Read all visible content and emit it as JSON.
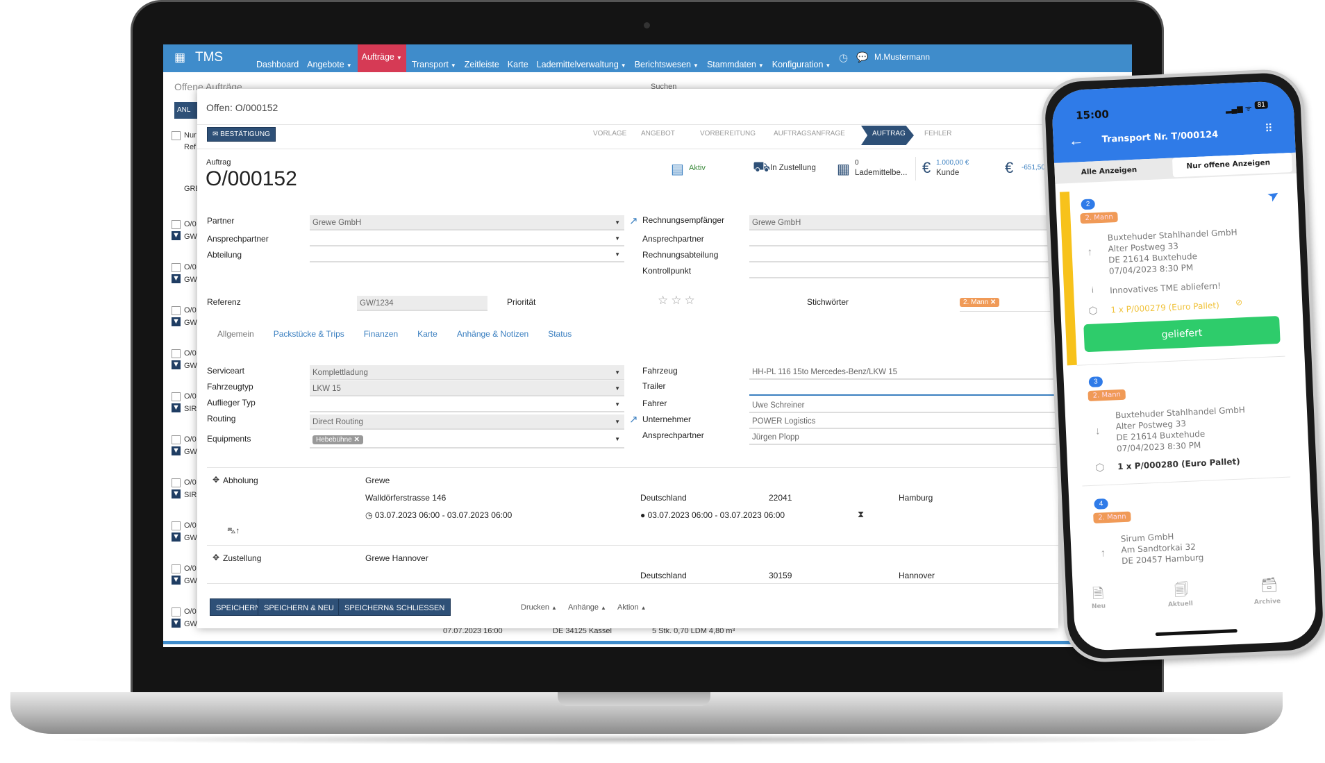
{
  "navbar": {
    "brand": "TMS",
    "user": "M.Mustermann",
    "items": [
      {
        "label": "Dashboard",
        "caret": false
      },
      {
        "label": "Angebote",
        "caret": true
      },
      {
        "label": "Aufträge",
        "caret": true,
        "active": true
      },
      {
        "label": "Transport",
        "caret": true
      },
      {
        "label": "Zeitleiste",
        "caret": false
      },
      {
        "label": "Karte",
        "caret": false
      },
      {
        "label": "Lademittelverwaltung",
        "caret": true
      },
      {
        "label": "Berichtswesen",
        "caret": true
      },
      {
        "label": "Stammdaten",
        "caret": true
      },
      {
        "label": "Konfiguration",
        "caret": true
      }
    ],
    "active_color": "#d63a55",
    "bar_color": "#3f8ccb"
  },
  "background": {
    "title": "Offene Aufträge",
    "search_label": "Suchen",
    "add_button": "ANL",
    "col_header_1": "Nur",
    "col_header_2": "Ref",
    "group": "GRE",
    "rows": [
      {
        "id": "O/0",
        "ref": "GW"
      },
      {
        "id": "O/0",
        "ref": "GW"
      },
      {
        "id": "O/0",
        "ref": "GW"
      },
      {
        "id": "O/0",
        "ref": "GW"
      },
      {
        "id": "O/0",
        "ref": "SIR"
      },
      {
        "id": "O/0",
        "ref": "GW"
      },
      {
        "id": "O/0",
        "ref": "SIR"
      },
      {
        "id": "O/0",
        "ref": "GW"
      },
      {
        "id": "O/0",
        "ref": "GW"
      },
      {
        "id": "O/0",
        "ref": "GW"
      }
    ],
    "footer_row": {
      "date": "07.07.2023 16:00",
      "place": "DE 34125 Kassel",
      "load": "5 Stk. 0,70 LDM 4,80 m³"
    }
  },
  "modal": {
    "title": "Offen: O/000152",
    "confirm_button": "BESTÄTIGUNG",
    "steps": [
      "VORLAGE",
      "ANGEBOT",
      "VORBEREITUNG",
      "AUFTRAGSANFRAGE",
      "AUFTRAG",
      "FEHLER"
    ],
    "active_step": "AUFTRAG",
    "order_label": "Auftrag",
    "order_number": "O/000152",
    "stats": {
      "active": "Aktiv",
      "delivery": "In Zustellung",
      "lademittel_count": "0",
      "lademittel": "Lademittelbe...",
      "customer_amount": "1.000,00 €",
      "customer": "Kunde",
      "other_amount": "-651,50"
    },
    "partner": {
      "label": "Partner",
      "value": "Grewe GmbH"
    },
    "contact": {
      "label": "Ansprechpartner",
      "value": ""
    },
    "department": {
      "label": "Abteilung",
      "value": ""
    },
    "invoice_recipient": {
      "label": "Rechnungsempfänger",
      "value": "Grewe GmbH"
    },
    "invoice_contact": {
      "label": "Ansprechpartner",
      "value": ""
    },
    "invoice_department": {
      "label": "Rechnungsabteilung",
      "value": ""
    },
    "checkpoint": {
      "label": "Kontrollpunkt",
      "value": ""
    },
    "reference": {
      "label": "Referenz",
      "value": "GW/1234"
    },
    "priority": {
      "label": "Priorität",
      "stars": 0,
      "max": 3
    },
    "keywords": {
      "label": "Stichwörter",
      "tag": "2. Mann"
    },
    "tabs": [
      "Allgemein",
      "Packstücke & Trips",
      "Finanzen",
      "Karte",
      "Anhänge & Notizen",
      "Status"
    ],
    "active_tab": "Allgemein",
    "service": {
      "label": "Serviceart",
      "value": "Komplettladung"
    },
    "vehicle_type": {
      "label": "Fahrzeugtyp",
      "value": "LKW 15"
    },
    "trailer_type": {
      "label": "Auflieger Typ",
      "value": ""
    },
    "routing": {
      "label": "Routing",
      "value": "Direct Routing"
    },
    "equipments": {
      "label": "Equipments",
      "tag": "Hebebühne"
    },
    "vehicle": {
      "label": "Fahrzeug",
      "value": "HH-PL 116 15to Mercedes-Benz/LKW 15"
    },
    "trailer": {
      "label": "Trailer",
      "value": ""
    },
    "driver": {
      "label": "Fahrer",
      "value": "Uwe Schreiner"
    },
    "carrier": {
      "label": "Unternehmer",
      "value": "POWER Logistics"
    },
    "carrier_contact": {
      "label": "Ansprechpartner",
      "value": "Jürgen Plopp"
    },
    "pickup": {
      "label": "Abholung",
      "name": "Grewe",
      "street": "Walldörferstrasse 146",
      "country": "Deutschland",
      "zip": "22041",
      "city": "Hamburg",
      "window1": "03.07.2023 06:00 - 03.07.2023 06:00",
      "window2": "03.07.2023 06:00 - 03.07.2023 06:00"
    },
    "delivery": {
      "label": "Zustellung",
      "name": "Grewe Hannover",
      "country": "Deutschland",
      "zip": "30159",
      "city": "Hannover"
    },
    "buttons": {
      "save": "SPEICHERN",
      "save_new": "SPEICHERN & NEU",
      "save_close": "SPEICHERN& SCHLIESSEN",
      "print": "Drucken",
      "attachments": "Anhänge",
      "action": "Aktion"
    }
  },
  "phone": {
    "time": "15:00",
    "battery": "81",
    "title": "Transport Nr. T/000124",
    "tabs": [
      "Alle Anzeigen",
      "Nur offene Anzeigen"
    ],
    "stops": [
      {
        "num": "2",
        "tag": "2. Mann",
        "direction": "up",
        "company": "Buxtehuder Stahlhandel GmbH",
        "street": "Alter Postweg 33",
        "city": "DE 21614 Buxtehude",
        "time": "07/04/2023 8:30 PM",
        "note": "Innovatives TME abliefern!",
        "item": "1 x P/000279 (Euro Pallet)",
        "button": "geliefert"
      },
      {
        "num": "3",
        "tag": "2. Mann",
        "direction": "down",
        "company": "Buxtehuder Stahlhandel GmbH",
        "street": "Alter Postweg 33",
        "city": "DE 21614 Buxtehude",
        "time": "07/04/2023 8:30 PM",
        "item": "1 x P/000280 (Euro Pallet)"
      },
      {
        "num": "4",
        "tag": "2. Mann",
        "direction": "up",
        "company": "Sirum GmbH",
        "street": "Am Sandtorkai 32",
        "city": "DE 20457 Hamburg"
      }
    ],
    "bottom_nav": [
      "Neu",
      "Aktuell",
      "Archive"
    ],
    "colors": {
      "header": "#2f7be8",
      "active_stop": "#f7c21b",
      "delivered_button": "#2ecc6b",
      "tag": "#f09a57"
    }
  }
}
